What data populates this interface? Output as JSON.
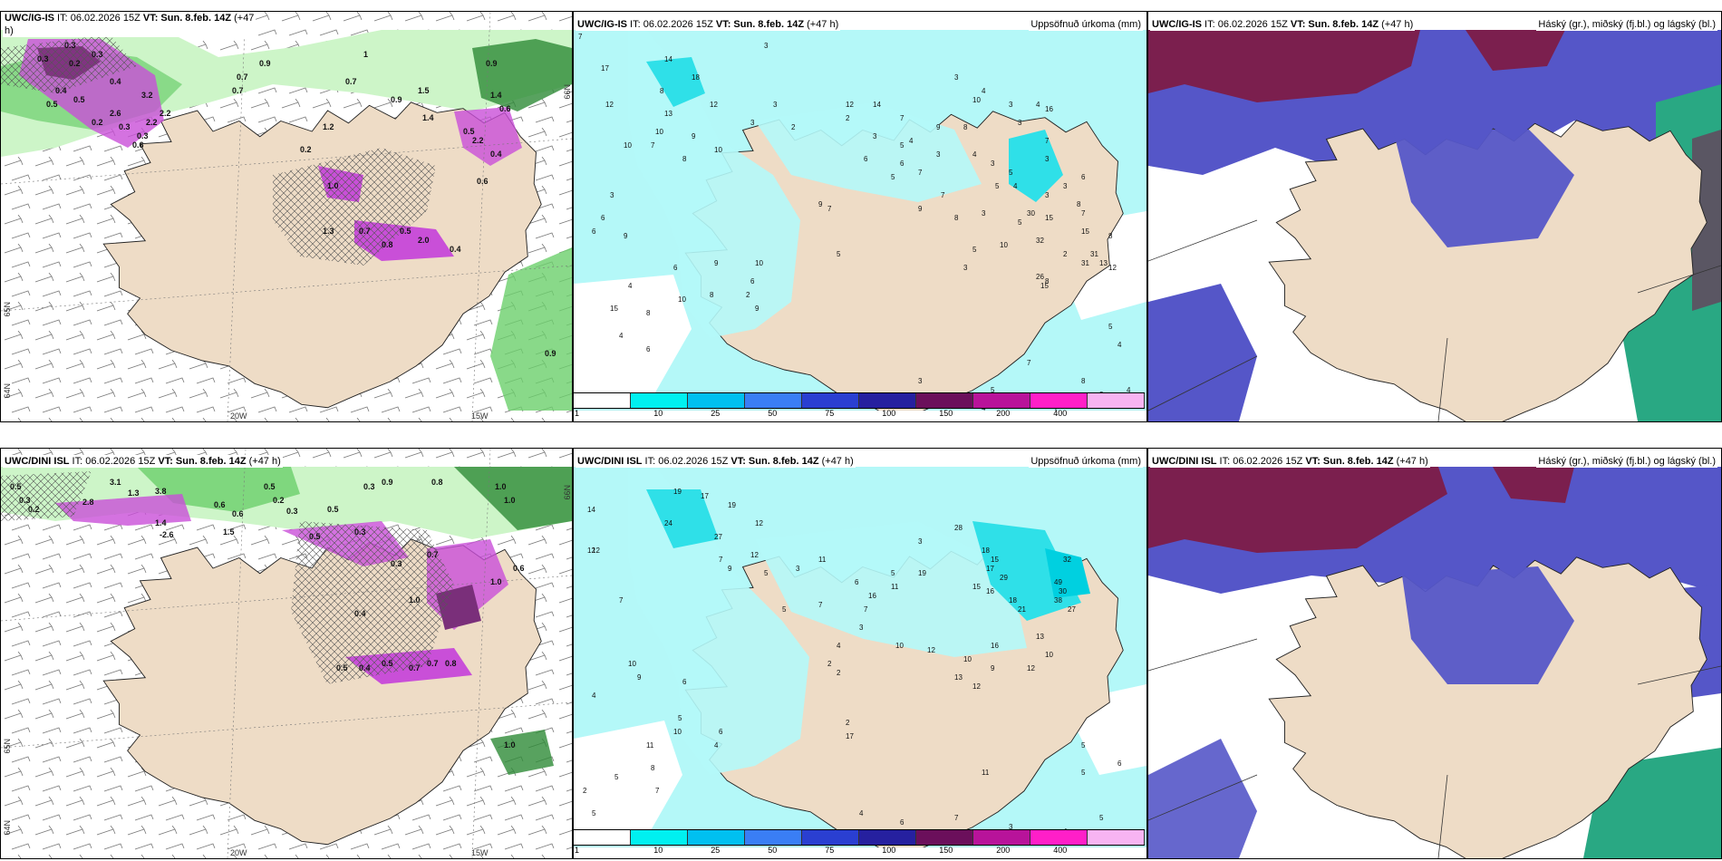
{
  "colors": {
    "land": "#eedcc6",
    "sea_precip": "#b4f8f8",
    "sea_none": "#ffffff",
    "green_light": "#cdf5c8",
    "green_mid": "#6ccf6c",
    "green_dark": "#2e8b37",
    "magenta": "#c94fd8",
    "magenta_dark": "#7a2f7a",
    "purple_dark": "#7b1f4e",
    "blue_snow": "#5556c8",
    "teal": "#29a883"
  },
  "colorbar": {
    "colors": [
      "#ffffff",
      "#00f0f0",
      "#00c0f0",
      "#3a7ef5",
      "#2a3fd1",
      "#26209f",
      "#6b0f5b",
      "#b8139a",
      "#ff1fc8",
      "#f7b4f2"
    ],
    "labels": [
      "1",
      "10",
      "25",
      "50",
      "75",
      "100",
      "150",
      "200",
      "400"
    ]
  },
  "panels": [
    {
      "id": "top-left",
      "title_model": "UWC/IG-IS",
      "title_it": " IT: 06.02.2026 15Z ",
      "title_vt": "VT: Sun. 8.feb. 14Z",
      "title_lead": " (+47",
      "title_line2": "h)",
      "lon_labels": [
        "20W",
        "15W"
      ],
      "lat_labels": [
        "64N",
        "65N",
        "66N"
      ],
      "values": [
        "0.3",
        "0.3",
        "0.2",
        "0.4",
        "0.3",
        "0.5",
        "0.4",
        "0.3",
        "0.3",
        "2.2",
        "3.2",
        "2.6",
        "0.6",
        "0.2",
        "2.2",
        "0.5",
        "0.2",
        "0.7",
        "0.9",
        "0.9",
        "1",
        "0.7",
        "1.5",
        "1.2",
        "2.2",
        "1.0",
        "0.6",
        "1.4",
        "0.4",
        "2.0",
        "0.8",
        "0.7",
        "1.3",
        "0.5",
        "0.4",
        "0.5",
        "0.6",
        "0.9",
        "1.4",
        "0.9",
        "0.7"
      ]
    },
    {
      "id": "top-middle",
      "title_model": "UWC/IG-IS",
      "title_it": " IT: 06.02.2026 15Z ",
      "title_vt": "VT: Sun. 8.feb. 14Z",
      "title_lead": " (+47 h)",
      "right_label": "Uppsöfnuð úrkoma (mm)",
      "values": [
        "7",
        "17",
        "12",
        "14",
        "18",
        "13",
        "12",
        "9",
        "8",
        "10",
        "3",
        "3",
        "3",
        "2",
        "3",
        "4",
        "9",
        "12",
        "14",
        "3",
        "4",
        "3",
        "3",
        "4",
        "7",
        "3",
        "5",
        "3",
        "6",
        "8",
        "10",
        "16",
        "4",
        "3",
        "10",
        "5",
        "3",
        "6",
        "6",
        "7",
        "4",
        "3",
        "5",
        "7",
        "8",
        "3",
        "5",
        "7",
        "8",
        "2",
        "30",
        "15",
        "32",
        "15",
        "31",
        "31",
        "26",
        "15",
        "13",
        "12",
        "10",
        "7",
        "10",
        "8",
        "3",
        "6",
        "6",
        "9",
        "4",
        "15",
        "4",
        "6",
        "8",
        "10",
        "6",
        "9",
        "8",
        "9",
        "7",
        "5",
        "10",
        "6",
        "2",
        "9",
        "2",
        "7",
        "5",
        "5",
        "9",
        "8",
        "8",
        "7",
        "5",
        "4",
        "7",
        "4",
        "3",
        "4",
        "8",
        "5",
        "4",
        "4",
        "3",
        "3"
      ]
    },
    {
      "id": "top-right",
      "title_model": "UWC/IG-IS",
      "title_it": " IT: 06.02.2026 15Z ",
      "title_vt": "VT: Sun. 8.feb. 14Z",
      "title_lead": " (+47 h)",
      "right_label": "Háský (gr.), miðský (fj.bl.) og lágský (bl.)"
    },
    {
      "id": "bottom-left",
      "title_model": "UWC/DINI ISL",
      "title_it": " IT: 06.02.2026 15Z ",
      "title_vt": "VT: Sun. 8.feb. 14Z",
      "title_lead": " (+47 h)",
      "lon_labels": [
        "20W",
        "15W"
      ],
      "lat_labels": [
        "64N",
        "65N",
        "66N"
      ],
      "values": [
        "0.5",
        "0.3",
        "0.2",
        "3.1",
        "3.8",
        "1.3",
        "2.8",
        "0.6",
        "0.6",
        "1.5",
        "1.4",
        "-2.6",
        "0.5",
        "0.2",
        "0.3",
        "1.0",
        "0.5",
        "0.3",
        "0.9",
        "0.8",
        "1.0",
        "1.0",
        "0.5",
        "0.3",
        "0.7",
        "0.4",
        "0.3",
        "1.0",
        "0.6",
        "0.4",
        "0.5",
        "0.7",
        "0.7",
        "0.8",
        "1.0",
        "0.5"
      ]
    },
    {
      "id": "bottom-middle",
      "title_model": "UWC/DINI ISL",
      "title_it": " IT: 06.02.2026 15Z ",
      "title_vt": "VT: Sun. 8.feb. 14Z",
      "title_lead": " (+47 h)",
      "right_label": "Uppsöfnuð úrkoma (mm)",
      "values": [
        "14",
        "19",
        "17",
        "19",
        "12",
        "24",
        "27",
        "12",
        "12",
        "9",
        "5",
        "5",
        "7",
        "3",
        "11",
        "7",
        "6",
        "5",
        "3",
        "28",
        "19",
        "16",
        "11",
        "18",
        "15",
        "17",
        "29",
        "15",
        "16",
        "18",
        "21",
        "32",
        "49",
        "30",
        "38",
        "27",
        "10",
        "12",
        "16",
        "13",
        "10",
        "12",
        "10",
        "9",
        "13",
        "12",
        "3",
        "4",
        "2",
        "2",
        "12",
        "7",
        "10",
        "9",
        "4",
        "6",
        "5",
        "6",
        "10",
        "4",
        "2",
        "11",
        "5",
        "5",
        "8",
        "7",
        "7",
        "11",
        "2",
        "17",
        "4",
        "6",
        "7",
        "3",
        "4",
        "5",
        "5",
        "5",
        "6"
      ]
    },
    {
      "id": "bottom-right",
      "title_model": "UWC/DINI ISL",
      "title_it": " IT: 06.02.2026 15Z ",
      "title_vt": "VT: Sun. 8.feb. 14Z",
      "title_lead": " (+47 h)",
      "right_label": "Háský (gr.), miðský (fj.bl.) og lágský (bl.)"
    }
  ]
}
